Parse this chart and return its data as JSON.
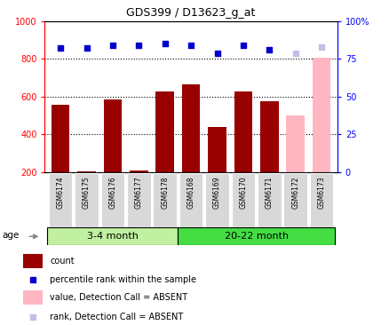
{
  "title": "GDS399 / D13623_g_at",
  "samples": [
    "GSM6174",
    "GSM6175",
    "GSM6176",
    "GSM6177",
    "GSM6178",
    "GSM6168",
    "GSM6169",
    "GSM6170",
    "GSM6171",
    "GSM6172",
    "GSM6173"
  ],
  "count_values": [
    555,
    205,
    585,
    210,
    630,
    665,
    440,
    630,
    578,
    500,
    805
  ],
  "rank_values": [
    82,
    82,
    84,
    84,
    85,
    84,
    79,
    84,
    81,
    79,
    83
  ],
  "absent_mask": [
    false,
    false,
    false,
    false,
    false,
    false,
    false,
    false,
    false,
    true,
    true
  ],
  "ylim_left": [
    200,
    1000
  ],
  "ylim_right": [
    0,
    100
  ],
  "yticks_left": [
    200,
    400,
    600,
    800,
    1000
  ],
  "yticks_right": [
    0,
    25,
    50,
    75,
    100
  ],
  "hlines": [
    400,
    600,
    800
  ],
  "bar_color_present": "#990000",
  "bar_color_absent": "#ffb6c1",
  "rank_color_present": "#0000cc",
  "rank_color_absent": "#c0c0e8",
  "legend_items": [
    {
      "label": "count",
      "color": "#990000",
      "type": "rect"
    },
    {
      "label": "percentile rank within the sample",
      "color": "#0000cc",
      "type": "square"
    },
    {
      "label": "value, Detection Call = ABSENT",
      "color": "#ffb6c1",
      "type": "rect"
    },
    {
      "label": "rank, Detection Call = ABSENT",
      "color": "#c0c0e8",
      "type": "square"
    }
  ],
  "group1_label": "3-4 month",
  "group1_color": "#c0f0a0",
  "group2_label": "20-22 month",
  "group2_color": "#44dd44",
  "age_label": "age"
}
